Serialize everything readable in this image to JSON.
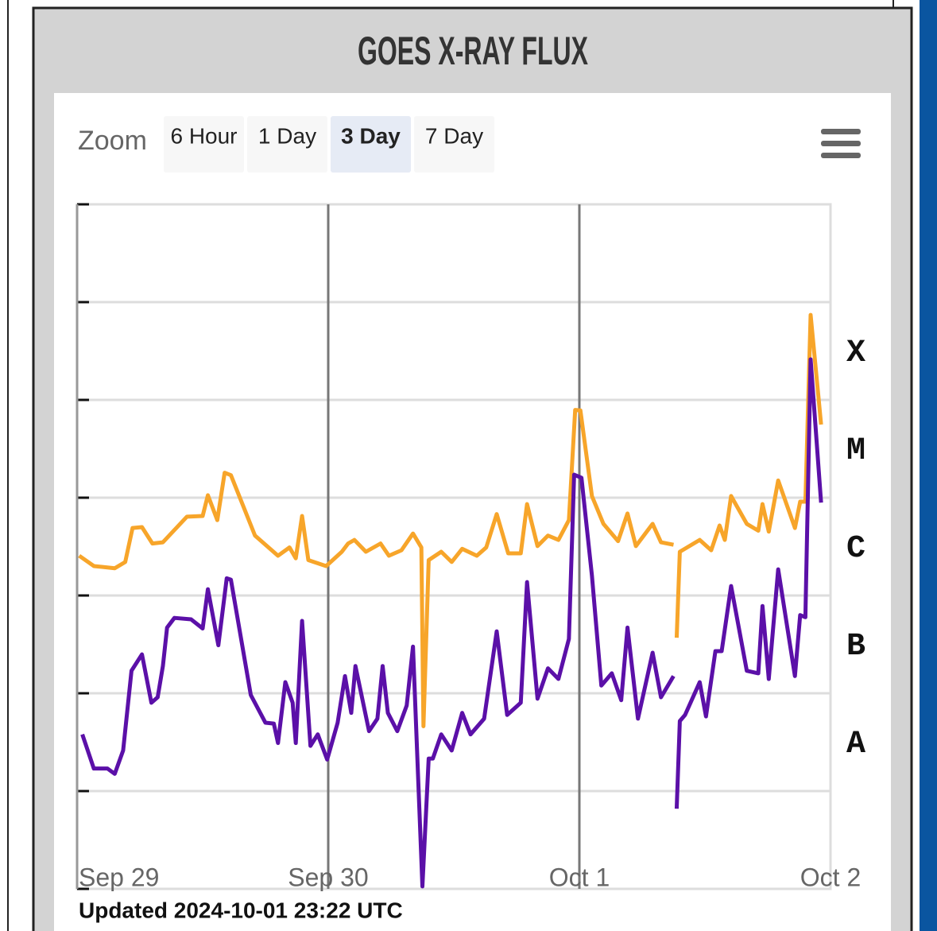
{
  "header": {
    "title": "GOES X-RAY FLUX"
  },
  "zoom": {
    "label": "Zoom",
    "buttons": [
      "6 Hour",
      "1 Day",
      "3 Day",
      "7 Day"
    ],
    "selected": "3 Day"
  },
  "chart_data": {
    "type": "line",
    "log_y": true,
    "grid": true,
    "xlim": [
      0,
      72
    ],
    "xticks": [
      {
        "value": 0,
        "label": "Sep 29"
      },
      {
        "value": 24,
        "label": "Sep 30"
      },
      {
        "value": 48,
        "label": "Oct 1"
      },
      {
        "value": 72,
        "label": "Oct 2"
      }
    ],
    "ylim": [
      1e-09,
      0.01
    ],
    "yticks": [
      1e-09,
      1e-08,
      1e-07,
      1e-06,
      1e-05,
      0.0001,
      0.001,
      0.01
    ],
    "class_bands": [
      {
        "label": "X",
        "min": 0.0001,
        "max": 0.001
      },
      {
        "label": "M",
        "min": 1e-05,
        "max": 0.0001
      },
      {
        "label": "C",
        "min": 1e-06,
        "max": 1e-05
      },
      {
        "label": "B",
        "min": 1e-07,
        "max": 1e-06
      },
      {
        "label": "A",
        "min": 1e-08,
        "max": 1e-07
      }
    ],
    "series": [
      {
        "color": "#f7a52a",
        "x": [
          0.2,
          1.6,
          3.6,
          4.6,
          5.3,
          6.2,
          7.2,
          8.2,
          10.5,
          12.0,
          12.5,
          13.4,
          14.1,
          14.7,
          17.0,
          19.2,
          20.3,
          20.9,
          21.5,
          22.1,
          23.8,
          25.3,
          25.9,
          26.5,
          27.6,
          29.0,
          29.8,
          31.0,
          32.1,
          32.9,
          33.1,
          33.6,
          34.8,
          35.8,
          36.8,
          38.2,
          39.1,
          40.1,
          41.2,
          42.4,
          43.0,
          44.0,
          45.0,
          46.0,
          47.0,
          47.6,
          48.1,
          49.2,
          50.3,
          51.7,
          52.6,
          53.4,
          55.0,
          55.8,
          57.0,
          57.2,
          57.3,
          57.6,
          59.5,
          60.6,
          61.4,
          61.9,
          62.5,
          64.0,
          65.1,
          65.5,
          66.1,
          67.0,
          68.6,
          69.1,
          69.6,
          70.1,
          71.1
        ],
        "values": [
          2.55e-06,
          2e-06,
          1.9e-06,
          2.2e-06,
          4.9e-06,
          5e-06,
          3.4e-06,
          3.5e-06,
          6.4e-06,
          6.5e-06,
          1.06e-05,
          5.9e-06,
          1.8e-05,
          1.7e-05,
          4.1e-06,
          2.55e-06,
          3.1e-06,
          2.4e-06,
          6.5e-06,
          2.3e-06,
          2e-06,
          2.8e-06,
          3.4e-06,
          3.7e-06,
          2.8e-06,
          3.4e-06,
          2.55e-06,
          2.9e-06,
          4.3e-06,
          3.1e-06,
          4.6e-08,
          2.3e-06,
          2.8e-06,
          2.2e-06,
          3e-06,
          2.55e-06,
          3.1e-06,
          6.8e-06,
          2.7e-06,
          2.7e-06,
          8.6e-06,
          3.2e-06,
          4.1e-06,
          3.7e-06,
          5.9e-06,
          7.9e-05,
          7.8e-05,
          1.04e-05,
          5.4e-06,
          3.6e-06,
          6.9e-06,
          3.2e-06,
          5.4e-06,
          3.5e-06,
          3.3e-06,
          null,
          3.7e-07,
          2.8e-06,
          3.7e-06,
          2.9e-06,
          5.2e-06,
          3.7e-06,
          1.04e-05,
          5.4e-06,
          4.6e-06,
          8.6e-06,
          4.5e-06,
          1.5e-05,
          4.9e-06,
          9.1e-06,
          9.1e-06,
          0.00074,
          5.6e-05
        ]
      },
      {
        "color": "#5b10a8",
        "x": [
          0.5,
          1.6,
          2.9,
          3.6,
          4.4,
          5.2,
          6.2,
          7.1,
          7.7,
          8.2,
          8.6,
          9.3,
          10.9,
          12.0,
          12.5,
          13.5,
          14.3,
          14.7,
          16.6,
          18.0,
          18.8,
          19.2,
          19.9,
          20.6,
          20.9,
          21.5,
          22.3,
          23.0,
          23.9,
          24.9,
          25.6,
          26.2,
          26.6,
          27.9,
          28.7,
          29.2,
          29.7,
          30.6,
          31.5,
          32.1,
          33.0,
          33.6,
          34.0,
          34.8,
          35.8,
          36.8,
          37.6,
          38.9,
          40.1,
          41.1,
          42.4,
          43.0,
          44.0,
          45.0,
          46.0,
          47.0,
          47.5,
          48.2,
          49.2,
          50.1,
          51.1,
          52.0,
          52.6,
          53.6,
          55.0,
          55.8,
          57.0,
          57.2,
          57.3,
          57.6,
          58.1,
          59.5,
          60.1,
          61.0,
          61.6,
          62.5,
          64.0,
          65.1,
          65.5,
          66.1,
          67.0,
          68.6,
          69.1,
          69.6,
          70.1,
          71.1
        ],
        "values": [
          3.8e-08,
          1.7e-08,
          1.7e-08,
          1.5e-08,
          2.6e-08,
          1.7e-07,
          2.5e-07,
          8e-08,
          9.1e-08,
          1.9e-07,
          4.7e-07,
          5.9e-07,
          5.7e-07,
          4.6e-07,
          1.16e-06,
          3.1e-07,
          1.5e-06,
          1.45e-06,
          9.6e-08,
          5e-08,
          4.9e-08,
          3.1e-08,
          1.3e-07,
          8e-08,
          3.1e-08,
          5.5e-07,
          2.9e-08,
          3.8e-08,
          2.1e-08,
          5e-08,
          1.5e-07,
          6.3e-08,
          1.9e-07,
          4.1e-08,
          5.5e-08,
          1.9e-07,
          6.3e-08,
          4.1e-08,
          7.5e-08,
          3e-07,
          1.06e-09,
          2.15e-08,
          2.15e-08,
          3.8e-08,
          2.6e-08,
          6.3e-08,
          3.8e-08,
          5.5e-08,
          4.3e-07,
          6e-08,
          8e-08,
          1.37e-06,
          8.8e-08,
          1.8e-07,
          1.4e-07,
          3.6e-07,
          1.72e-05,
          1.6e-05,
          1.6e-06,
          1.2e-07,
          1.6e-07,
          8.5e-08,
          4.7e-07,
          5.5e-08,
          2.6e-07,
          9.1e-08,
          1.5e-07,
          null,
          6.6e-09,
          5.2e-08,
          6e-08,
          1.3e-07,
          5.8e-08,
          2.7e-07,
          2.7e-07,
          1.25e-06,
          1.7e-07,
          1.6e-07,
          7.8e-07,
          1.4e-07,
          1.85e-06,
          1.5e-07,
          6.3e-07,
          6e-07,
          0.00026,
          8.9e-06
        ]
      }
    ]
  },
  "footer": {
    "updated": "Updated 2024-10-01 23:22 UTC"
  }
}
